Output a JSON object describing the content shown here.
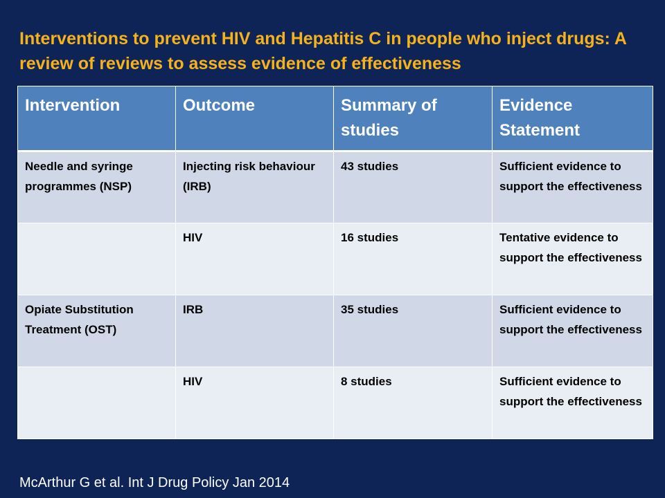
{
  "title": "Interventions to prevent HIV and Hepatitis C in people who inject drugs: A review of reviews to assess evidence of effectiveness",
  "table": {
    "headers": [
      "Intervention",
      "Outcome",
      "Summary of studies",
      "Evidence Statement"
    ],
    "rows": [
      [
        "Needle and syringe programmes (NSP)",
        "Injecting risk behaviour (IRB)",
        "43 studies",
        "Sufficient evidence to support the effectiveness"
      ],
      [
        "",
        "HIV",
        "16 studies",
        "Tentative evidence to support the effectiveness"
      ],
      [
        "Opiate Substitution Treatment (OST)",
        "IRB",
        "35 studies",
        "Sufficient evidence to support the effectiveness"
      ],
      [
        "",
        "HIV",
        "8 studies",
        "Sufficient evidence to support the effectiveness"
      ]
    ]
  },
  "citation": "McArthur G et al. Int J Drug Policy Jan 2014",
  "colors": {
    "background": "#0e2456",
    "title": "#f5b21a",
    "header": "#4f81bd",
    "row_odd": "#d0d8e8",
    "row_even": "#e9edf4"
  }
}
